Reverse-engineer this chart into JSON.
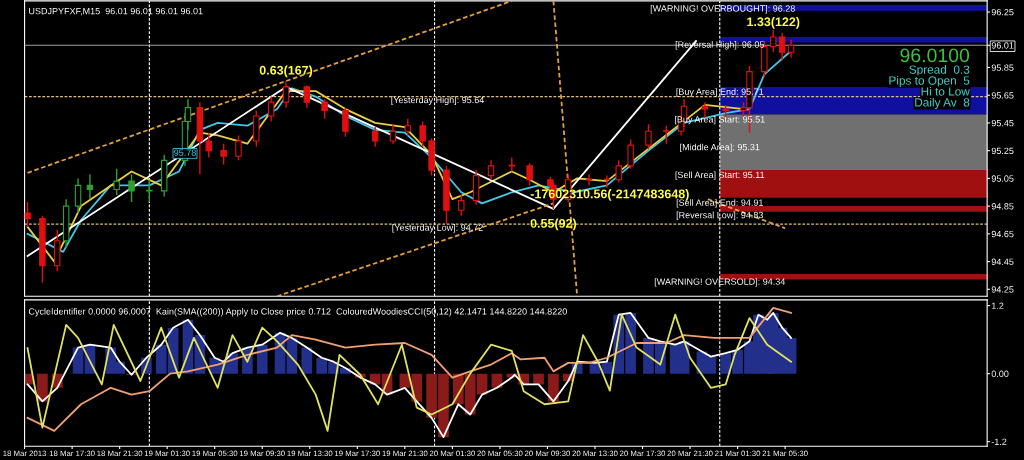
{
  "chart_data": [
    {
      "type": "candlestick",
      "title": "USDJPYFXF,M15  96.01 96.01 96.01 96.01",
      "xlim": [
        "2013-03-18T13:30",
        "2013-03-21T22:30"
      ],
      "ylim": [
        94.2,
        96.33
      ],
      "tick_labels": "y",
      "yticks": [
        96.25,
        {
          "value": 96.01,
          "label": "96.01"
        },
        95.85,
        95.65,
        95.45,
        95.25,
        95.05,
        94.85,
        94.65,
        94.45,
        94.25
      ],
      "series": [
        {
          "color": "#e01010",
          "x": [
            "2013-03-18T13:45",
            "2013-03-18T15:00",
            "2013-03-18T16:15",
            "2013-03-19T04:15",
            "2013-03-19T05:00",
            "2013-03-19T06:15",
            "2013-03-19T07:30",
            "2013-03-19T09:00",
            "2013-03-19T10:15",
            "2013-03-19T11:30",
            "2013-03-19T13:15",
            "2013-03-19T14:45",
            "2013-03-19T16:30",
            "2013-03-19T19:00",
            "2013-03-19T20:30",
            "2013-03-19T21:45",
            "2013-03-19T23:00",
            "2013-03-19T23:45",
            "2013-03-20T01:00",
            "2013-03-20T02:15",
            "2013-03-20T03:30",
            "2013-03-20T04:45",
            "2013-03-20T06:30",
            "2013-03-20T08:00",
            "2013-03-20T09:45",
            "2013-03-20T10:00",
            "2013-03-20T11:15",
            "2013-03-20T13:00",
            "2013-03-20T14:30",
            "2013-03-20T15:30",
            "2013-03-20T16:30",
            "2013-03-20T18:00",
            "2013-03-20T19:30",
            "2013-03-20T20:45",
            "2013-03-20T21:00",
            "2013-03-20T22:45",
            "2013-03-21T00:30",
            "2013-03-21T02:00",
            "2013-03-21T02:30",
            "2013-03-21T03:45",
            "2013-03-21T04:30",
            "2013-03-21T05:15",
            "2013-03-21T06:00"
          ],
          "ohlc": [
            [
              94.8,
              94.88,
              94.7,
              94.76
            ],
            [
              94.76,
              94.78,
              94.3,
              94.42
            ],
            [
              94.42,
              94.68,
              94.38,
              94.6
            ],
            [
              95.56,
              95.6,
              95.08,
              95.32
            ],
            [
              95.32,
              95.38,
              95.2,
              95.25
            ],
            [
              95.25,
              95.3,
              95.15,
              95.21
            ],
            [
              95.21,
              95.36,
              95.18,
              95.32
            ],
            [
              95.32,
              95.54,
              95.28,
              95.5
            ],
            [
              95.5,
              95.64,
              95.46,
              95.6
            ],
            [
              95.6,
              95.75,
              95.56,
              95.71
            ],
            [
              95.71,
              95.72,
              95.56,
              95.6
            ],
            [
              95.6,
              95.62,
              95.48,
              95.54
            ],
            [
              95.54,
              95.56,
              95.35,
              95.39
            ],
            [
              95.39,
              95.42,
              95.28,
              95.32
            ],
            [
              95.32,
              95.44,
              95.3,
              95.39
            ],
            [
              95.39,
              95.48,
              95.36,
              95.43
            ],
            [
              95.43,
              95.46,
              95.28,
              95.32
            ],
            [
              95.32,
              95.34,
              95.07,
              95.11
            ],
            [
              95.11,
              95.14,
              94.72,
              94.82
            ],
            [
              94.82,
              94.93,
              94.78,
              94.89
            ],
            [
              94.89,
              95.11,
              94.86,
              95.07
            ],
            [
              95.07,
              95.18,
              95.04,
              95.14
            ],
            [
              95.14,
              95.2,
              95.1,
              95.14
            ],
            [
              95.14,
              95.16,
              95.0,
              95.04
            ],
            [
              95.04,
              95.06,
              94.95,
              95.0
            ],
            [
              95.0,
              95.02,
              94.83,
              94.9
            ],
            [
              94.9,
              95.08,
              94.88,
              95.04
            ],
            [
              95.04,
              95.08,
              95.0,
              95.04
            ],
            [
              95.04,
              95.07,
              94.98,
              95.04
            ],
            [
              95.04,
              95.18,
              95.02,
              95.14
            ],
            [
              95.14,
              95.33,
              95.12,
              95.29
            ],
            [
              95.29,
              95.44,
              95.26,
              95.39
            ],
            [
              95.39,
              95.43,
              95.3,
              95.39
            ],
            [
              95.39,
              95.5,
              95.36,
              95.46
            ],
            [
              95.46,
              95.62,
              95.42,
              95.57
            ],
            [
              95.57,
              95.6,
              95.48,
              95.55
            ],
            [
              95.55,
              95.58,
              95.48,
              95.54
            ],
            [
              95.54,
              95.6,
              95.5,
              95.56
            ],
            [
              95.56,
              95.86,
              95.38,
              95.82
            ],
            [
              95.82,
              96.04,
              95.78,
              96.0
            ],
            [
              96.0,
              96.12,
              95.96,
              96.07
            ],
            [
              96.07,
              96.1,
              95.9,
              95.96
            ],
            [
              95.96,
              96.05,
              95.92,
              96.01
            ]
          ]
        },
        {
          "color": "#30a030",
          "x": [
            "2013-03-18T17:00",
            "2013-03-18T18:00",
            "2013-03-18T19:00",
            "2013-03-18T21:15",
            "2013-03-18T22:30",
            "2013-03-19T00:00",
            "2013-03-19T01:15",
            "2013-03-19T03:00",
            "2013-03-19T03:15"
          ],
          "ohlc": [
            [
              94.6,
              94.9,
              94.55,
              94.85
            ],
            [
              94.85,
              95.05,
              94.8,
              95.0
            ],
            [
              95.0,
              95.08,
              94.9,
              94.97
            ],
            [
              94.97,
              95.12,
              94.93,
              95.03
            ],
            [
              95.03,
              95.08,
              94.88,
              94.96
            ],
            [
              94.96,
              95.04,
              94.88,
              94.96
            ],
            [
              94.96,
              95.22,
              94.92,
              95.18
            ],
            [
              95.18,
              95.52,
              95.14,
              95.46
            ],
            [
              95.46,
              95.62,
              95.4,
              95.56
            ]
          ]
        },
        {
          "type": "line",
          "color": "#40c8e8",
          "x": [
            "2013-03-18T13:45",
            "2013-03-18T16:45",
            "2013-03-18T18:15",
            "2013-03-18T20:45",
            "2013-03-19T00:00",
            "2013-03-19T02:30",
            "2013-03-19T04:15",
            "2013-03-19T05:45",
            "2013-03-19T08:15",
            "2013-03-19T10:45",
            "2013-03-19T12:00",
            "2013-03-19T14:00",
            "2013-03-19T16:30",
            "2013-03-19T19:00",
            "2013-03-19T21:30",
            "2013-03-19T23:45",
            "2013-03-20T02:15",
            "2013-03-20T04:00",
            "2013-03-20T06:30",
            "2013-03-20T08:45",
            "2013-03-20T11:45",
            "2013-03-20T14:30",
            "2013-03-20T18:00",
            "2013-03-20T21:00",
            "2013-03-21T00:30",
            "2013-03-21T02:30",
            "2013-03-21T03:45",
            "2013-03-21T06:00"
          ],
          "values": [
            94.65,
            94.52,
            94.75,
            95.0,
            95.0,
            95.1,
            95.4,
            95.45,
            95.43,
            95.55,
            95.7,
            95.64,
            95.5,
            95.4,
            95.38,
            95.2,
            94.95,
            94.87,
            94.95,
            95.0,
            94.95,
            95.0,
            95.25,
            95.45,
            95.52,
            95.55,
            95.8,
            95.97
          ]
        },
        {
          "type": "line",
          "color": "#e8d040",
          "x": [
            "2013-03-18T13:45",
            "2013-03-18T16:00",
            "2013-03-18T18:15",
            "2013-03-18T22:30",
            "2013-03-19T01:00",
            "2013-03-19T04:15",
            "2013-03-19T05:45",
            "2013-03-19T08:15",
            "2013-03-19T11:30",
            "2013-03-19T14:00",
            "2013-03-19T16:30",
            "2013-03-19T19:00",
            "2013-03-19T21:30",
            "2013-03-19T23:45",
            "2013-03-20T01:30",
            "2013-03-20T03:00",
            "2013-03-20T06:30",
            "2013-03-20T08:00",
            "2013-03-20T10:00",
            "2013-03-20T12:00",
            "2013-03-20T14:30",
            "2013-03-20T22:45",
            "2013-03-21T02:00"
          ],
          "values": [
            94.7,
            94.45,
            94.85,
            95.1,
            95.0,
            95.38,
            95.36,
            95.3,
            95.68,
            95.68,
            95.55,
            95.45,
            95.42,
            95.22,
            94.9,
            94.95,
            95.1,
            95.04,
            94.95,
            95.05,
            95.03,
            95.58,
            95.55
          ]
        },
        {
          "type": "line",
          "color": "#ffffff",
          "x": [
            "2013-03-18T13:45",
            "2013-03-19T11:30",
            "2013-03-20T10:00",
            "2013-03-20T22:00"
          ],
          "values": [
            94.49,
            95.71,
            94.83,
            96.04
          ]
        },
        {
          "type": "line",
          "color": "#e0a040",
          "line_style": "dashed",
          "x": [
            "2013-03-18T13:45",
            "2013-03-20T06:30"
          ],
          "values": [
            95.09,
            96.33
          ]
        },
        {
          "type": "line",
          "color": "#e0a040",
          "line_style": "dashed",
          "x": [
            "2013-03-19T10:45",
            "2013-03-20T10:00"
          ],
          "values": [
            94.2,
            94.87
          ]
        },
        {
          "type": "line",
          "color": "#e0a040",
          "line_style": "dashed",
          "x": [
            "2013-03-20T23:00",
            "2013-03-21T05:30"
          ],
          "values": [
            94.9,
            94.69
          ]
        },
        {
          "type": "line",
          "color": "#e0a040",
          "line_style": "dashed",
          "x": [
            "2013-03-20T10:00",
            "2013-03-20T12:00"
          ],
          "values": [
            96.33,
            94.2
          ]
        }
      ],
      "ref_lines": [
        {
          "axis": "x",
          "value": "2013-03-19T00:00",
          "color": "#ffffff",
          "line_style": "dashed"
        },
        {
          "axis": "x",
          "value": "2013-03-20T00:00",
          "color": "#ffffff",
          "line_style": "dashed"
        },
        {
          "axis": "x",
          "value": "2013-03-21T00:00",
          "color": "#ffffff",
          "line_style": "dashed"
        },
        {
          "axis": "y",
          "value": 95.64,
          "color": "#e0c080",
          "line_style": "dashed"
        },
        {
          "axis": "y",
          "value": 94.72,
          "color": "#e0c080",
          "line_style": "dashed"
        },
        {
          "axis": "y",
          "value": 96.01,
          "color": "#a0a0a0",
          "line_style": "solid"
        }
      ],
      "bands": [
        {
          "axis": "y",
          "from": 96.26,
          "to": 96.3,
          "color": "#1010a0"
        },
        {
          "axis": "y",
          "from": 96.03,
          "to": 96.07,
          "color": "#1010a0"
        },
        {
          "axis": "y",
          "from": 95.51,
          "to": 95.71,
          "color": "#1010a0"
        },
        {
          "axis": "y",
          "from": 95.11,
          "to": 95.51,
          "color": "#707070"
        },
        {
          "axis": "y",
          "from": 94.91,
          "to": 95.11,
          "color": "#a01010"
        },
        {
          "axis": "y",
          "from": 94.81,
          "to": 94.85,
          "color": "#a01010"
        },
        {
          "axis": "y",
          "from": 94.32,
          "to": 94.36,
          "color": "#a01010"
        }
      ],
      "annotations": [
        {
          "text": "0.63(167)",
          "x": "2013-03-19T11:30",
          "y": 95.71
        },
        {
          "text": "1.33(122)",
          "x": "2013-03-21T04:30",
          "y": 96.12
        },
        {
          "text": "0.55(92)",
          "x": "2013-03-20T10:00",
          "y": 94.83
        },
        {
          "text": "95.78",
          "x": "2013-03-19T03:00",
          "y": 95.23
        },
        {
          "text": "[Yesterday High]: 95.64",
          "x": "2013-03-20T00:15",
          "y": 95.61
        },
        {
          "text": "[Yesterday Low]: 94.72",
          "x": "2013-03-20T00:15",
          "y": 94.69
        },
        {
          "text": "[WARNING! OVERBOUGHT]: 96.28",
          "x": "2013-03-21T00:15",
          "y": 96.27
        },
        {
          "text": "[Reversal High]: 96.05",
          "x": "2013-03-21T00:00",
          "y": 96.01
        },
        {
          "text": "[Buy Area] End: 95.71",
          "x": "2013-03-21T00:00",
          "y": 95.67
        },
        {
          "text": "[Buy Area] Start: 95.51",
          "x": "2013-03-21T00:00",
          "y": 95.47
        },
        {
          "text": "[Middle Area]: 95.31",
          "x": "2013-03-21T00:00",
          "y": 95.27
        },
        {
          "text": "[Sell Area] Start: 95.11",
          "x": "2013-03-21T00:00",
          "y": 95.07
        },
        {
          "text": "[Sell Area] End: 94.91",
          "x": "2013-03-21T00:00",
          "y": 94.87
        },
        {
          "text": "[Reversal Low]: 94.83",
          "x": "2013-03-21T00:00",
          "y": 94.78
        },
        {
          "text": "[WARNING! OVERSOLD]: 94.34",
          "x": "2013-03-21T00:00",
          "y": 94.3
        },
        "-17602310.56(-2147483648)",
        "96.0100",
        "Spread  0.3",
        "Pips to Open  5",
        "Hi to Low",
        "Daily Av  8"
      ]
    },
    {
      "type": "bar",
      "title": "CycleIdentifier 0.0000 96.0007  Kain(SMA((200)) Apply to Close price 0.712  ColouredWoodiesCCI(50,12) 42.1471 144.8220 144.8220",
      "xlim": [
        "2013-03-18T13:30",
        "2013-03-21T22:30"
      ],
      "ylim": [
        -1.28,
        1.3
      ],
      "yticks": [
        1.2,
        {
          "value": 0,
          "label": "0.00"
        },
        -1.2
      ],
      "xticks": [
        {
          "value": "2013-03-18T13:30",
          "label": "18 Mar 2013"
        },
        {
          "value": "2013-03-18T17:30",
          "label": "18 Mar 17:30"
        },
        {
          "value": "2013-03-18T21:30",
          "label": "18 Mar 21:30"
        },
        {
          "value": "2013-03-19T01:30",
          "label": "19 Mar 01:30"
        },
        {
          "value": "2013-03-19T05:30",
          "label": "19 Mar 05:30"
        },
        {
          "value": "2013-03-19T09:30",
          "label": "19 Mar 09:30"
        },
        {
          "value": "2013-03-19T13:30",
          "label": "19 Mar 13:30"
        },
        {
          "value": "2013-03-19T17:30",
          "label": "19 Mar 17:30"
        },
        {
          "value": "2013-03-19T21:30",
          "label": "19 Mar 21:30"
        },
        {
          "value": "2013-03-20T01:30",
          "label": "20 Mar 01:30"
        },
        {
          "value": "2013-03-20T05:30",
          "label": "20 Mar 05:30"
        },
        {
          "value": "2013-03-20T09:30",
          "label": "20 Mar 09:30"
        },
        {
          "value": "2013-03-20T13:30",
          "label": "20 Mar 13:30"
        },
        {
          "value": "2013-03-20T17:30",
          "label": "20 Mar 17:30"
        },
        {
          "value": "2013-03-20T21:30",
          "label": "20 Mar 21:30"
        },
        {
          "value": "2013-03-21T01:30",
          "label": "21 Mar 01:30"
        },
        {
          "value": "2013-03-21T05:30",
          "label": "21 Mar 05:30"
        }
      ],
      "ref_lines": [
        {
          "axis": "x",
          "value": "2013-03-19T00:00",
          "color": "#ffffff",
          "line_style": "dashed"
        },
        {
          "axis": "x",
          "value": "2013-03-20T00:00",
          "color": "#ffffff",
          "line_style": "dashed"
        },
        {
          "axis": "x",
          "value": "2013-03-21T00:00",
          "color": "#ffffff",
          "line_style": "dashed"
        }
      ],
      "series": [
        {
          "x": [
            "2013-03-18T13:45",
            "2013-03-18T15:00",
            "2013-03-18T16:15",
            "2013-03-18T18:00",
            "2013-03-18T19:00",
            "2013-03-18T20:45",
            "2013-03-18T21:30",
            "2013-03-18T22:30",
            "2013-03-18T23:45",
            "2013-03-19T01:00",
            "2013-03-19T02:00",
            "2013-03-19T03:15",
            "2013-03-19T04:15",
            "2013-03-19T05:30",
            "2013-03-19T06:15",
            "2013-03-19T07:00",
            "2013-03-19T08:15",
            "2013-03-19T09:30",
            "2013-03-19T11:00",
            "2013-03-19T12:00",
            "2013-03-19T13:15",
            "2013-03-19T14:30",
            "2013-03-19T15:30",
            "2013-03-19T16:30",
            "2013-03-19T17:45",
            "2013-03-19T19:00",
            "2013-03-19T20:00",
            "2013-03-19T21:30",
            "2013-03-19T22:30",
            "2013-03-19T23:45",
            "2013-03-20T00:45",
            "2013-03-20T02:00",
            "2013-03-20T03:00",
            "2013-03-20T04:00",
            "2013-03-20T05:15",
            "2013-03-20T06:30",
            "2013-03-20T06:45",
            "2013-03-20T07:30",
            "2013-03-20T08:45",
            "2013-03-20T10:00",
            "2013-03-20T11:15",
            "2013-03-20T12:00",
            "2013-03-20T13:30",
            "2013-03-20T14:30",
            "2013-03-20T15:30",
            "2013-03-20T16:30",
            "2013-03-20T18:00",
            "2013-03-20T19:00",
            "2013-03-20T20:15",
            "2013-03-20T21:00",
            "2013-03-20T22:30",
            "2013-03-20T23:15",
            "2013-03-21T00:30",
            "2013-03-21T01:30",
            "2013-03-21T02:30",
            "2013-03-21T03:15",
            "2013-03-21T04:00",
            "2013-03-21T04:30",
            "2013-03-21T05:15",
            "2013-03-21T06:00"
          ],
          "values": [
            -0.19,
            -0.49,
            -0.25,
            0.46,
            0.51,
            0.46,
            0.21,
            -0.02,
            0.28,
            0.51,
            0.81,
            0.95,
            0.68,
            0.28,
            0.21,
            0.36,
            0.46,
            0.51,
            0.72,
            0.63,
            0.46,
            0.28,
            0.21,
            0.1,
            -0.07,
            -0.19,
            -0.37,
            -0.25,
            -0.49,
            -0.78,
            -1.12,
            -0.54,
            -0.72,
            -0.37,
            -0.25,
            -0.07,
            -0.02,
            -0.19,
            -0.19,
            -0.49,
            -0.13,
            0.21,
            0.19,
            0.21,
            1.04,
            1.07,
            0.63,
            0.57,
            0.51,
            0.57,
            0.39,
            0.3,
            0.36,
            0.42,
            0.57,
            1.04,
            0.95,
            1.07,
            0.81,
            0.63
          ],
          "colors": [
            "#8b1a1a",
            "#8b1a1a",
            "#8b1a1a",
            "#22308c",
            "#22308c",
            "#22308c",
            "#22308c",
            "#8b1a1a",
            "#22308c",
            "#22308c",
            "#22308c",
            "#22308c",
            "#22308c",
            "#22308c",
            "#22308c",
            "#22308c",
            "#22308c",
            "#22308c",
            "#22308c",
            "#22308c",
            "#22308c",
            "#22308c",
            "#22308c",
            "#22308c",
            "#8b1a1a",
            "#8b1a1a",
            "#8b1a1a",
            "#8b1a1a",
            "#8b1a1a",
            "#8b1a1a",
            "#8b1a1a",
            "#8b1a1a",
            "#8b1a1a",
            "#8b1a1a",
            "#8b1a1a",
            "#8b1a1a",
            "#8b1a1a",
            "#8b1a1a",
            "#8b1a1a",
            "#8b1a1a",
            "#8b1a1a",
            "#22308c",
            "#22308c",
            "#22308c",
            "#22308c",
            "#22308c",
            "#22308c",
            "#22308c",
            "#22308c",
            "#22308c",
            "#22308c",
            "#22308c",
            "#22308c",
            "#22308c",
            "#22308c",
            "#22308c",
            "#22308c",
            "#22308c",
            "#22308c",
            "#22308c"
          ]
        },
        {
          "type": "line",
          "color": "#ffffff",
          "x": [
            "2013-03-18T13:45",
            "2013-03-18T15:00",
            "2013-03-18T16:15",
            "2013-03-18T18:00",
            "2013-03-18T19:00",
            "2013-03-18T20:45",
            "2013-03-18T21:30",
            "2013-03-18T22:30",
            "2013-03-18T23:45",
            "2013-03-19T01:00",
            "2013-03-19T02:00",
            "2013-03-19T03:15",
            "2013-03-19T04:15",
            "2013-03-19T05:30",
            "2013-03-19T06:15",
            "2013-03-19T07:00",
            "2013-03-19T08:15",
            "2013-03-19T09:30",
            "2013-03-19T11:00",
            "2013-03-19T12:00",
            "2013-03-19T13:15",
            "2013-03-19T14:30",
            "2013-03-19T15:30",
            "2013-03-19T16:30",
            "2013-03-19T17:45",
            "2013-03-19T19:00",
            "2013-03-19T20:00",
            "2013-03-19T21:30",
            "2013-03-19T22:30",
            "2013-03-19T23:45",
            "2013-03-20T00:45",
            "2013-03-20T02:00",
            "2013-03-20T03:00",
            "2013-03-20T04:00",
            "2013-03-20T05:15",
            "2013-03-20T06:30",
            "2013-03-20T06:45",
            "2013-03-20T07:30",
            "2013-03-20T08:45",
            "2013-03-20T10:00",
            "2013-03-20T11:15",
            "2013-03-20T12:00",
            "2013-03-20T13:30",
            "2013-03-20T14:30",
            "2013-03-20T15:30",
            "2013-03-20T16:30",
            "2013-03-20T18:00",
            "2013-03-20T19:00",
            "2013-03-20T20:15",
            "2013-03-20T21:00",
            "2013-03-20T22:30",
            "2013-03-20T23:15",
            "2013-03-21T00:30",
            "2013-03-21T01:30",
            "2013-03-21T02:30",
            "2013-03-21T03:15",
            "2013-03-21T04:00",
            "2013-03-21T04:30",
            "2013-03-21T05:15",
            "2013-03-21T06:00"
          ],
          "values": [
            -0.19,
            -0.49,
            -0.25,
            0.46,
            0.51,
            0.46,
            0.21,
            -0.02,
            0.28,
            0.51,
            0.81,
            0.95,
            0.68,
            0.28,
            0.21,
            0.36,
            0.46,
            0.51,
            0.72,
            0.63,
            0.46,
            0.28,
            0.21,
            0.1,
            -0.07,
            -0.19,
            -0.37,
            -0.25,
            -0.49,
            -0.78,
            -1.12,
            -0.54,
            -0.72,
            -0.37,
            -0.25,
            -0.07,
            -0.02,
            -0.19,
            -0.19,
            -0.49,
            -0.13,
            0.21,
            0.19,
            0.21,
            1.04,
            1.07,
            0.63,
            0.57,
            0.51,
            0.57,
            0.39,
            0.3,
            0.36,
            0.42,
            0.57,
            1.04,
            0.95,
            1.07,
            0.81,
            0.63
          ]
        },
        {
          "type": "line",
          "color": "#f0a070",
          "x": [
            "2013-03-18T13:45",
            "2013-03-18T16:00",
            "2013-03-18T18:15",
            "2013-03-18T20:45",
            "2013-03-18T22:30",
            "2013-03-19T00:00",
            "2013-03-19T01:45",
            "2013-03-19T03:15",
            "2013-03-19T05:45",
            "2013-03-19T08:15",
            "2013-03-19T10:45",
            "2013-03-19T12:00",
            "2013-03-19T14:00",
            "2013-03-19T16:30",
            "2013-03-19T19:00",
            "2013-03-19T21:30",
            "2013-03-19T23:45",
            "2013-03-20T01:30",
            "2013-03-20T03:00",
            "2013-03-20T04:45",
            "2013-03-20T06:30",
            "2013-03-20T07:15",
            "2013-03-20T09:15",
            "2013-03-20T10:00",
            "2013-03-20T11:15",
            "2013-03-20T13:00",
            "2013-03-20T14:30",
            "2013-03-20T17:00",
            "2013-03-20T19:30",
            "2013-03-20T21:00",
            "2013-03-20T23:30",
            "2013-03-21T02:30",
            "2013-03-21T04:30",
            "2013-03-21T06:00"
          ],
          "values": [
            -0.78,
            -1.01,
            -0.54,
            -0.25,
            -0.37,
            -0.31,
            0,
            0.04,
            0.16,
            0.33,
            0.46,
            0.68,
            0.6,
            0.46,
            0.51,
            0.54,
            0.33,
            -0.07,
            0.04,
            0.16,
            0.36,
            0.25,
            0.28,
            0.04,
            0.19,
            0.19,
            0.28,
            0.54,
            0.54,
            0.68,
            0.63,
            0.63,
            1.16,
            1.07
          ]
        },
        {
          "type": "line",
          "color": "#e0e060",
          "x": [
            "2013-03-18T13:45",
            "2013-03-18T15:00",
            "2013-03-18T17:00",
            "2013-03-18T18:00",
            "2013-03-18T20:00",
            "2013-03-18T21:00",
            "2013-03-18T23:15",
            "2013-03-19T01:00",
            "2013-03-19T02:30",
            "2013-03-19T03:45",
            "2013-03-19T05:45",
            "2013-03-19T07:00",
            "2013-03-19T08:15",
            "2013-03-19T09:30",
            "2013-03-19T10:45",
            "2013-03-19T12:30",
            "2013-03-19T14:00",
            "2013-03-19T15:00",
            "2013-03-19T16:00",
            "2013-03-19T17:45",
            "2013-03-19T19:15",
            "2013-03-19T21:15",
            "2013-03-19T22:30",
            "2013-03-19T23:45",
            "2013-03-20T01:30",
            "2013-03-20T03:00",
            "2013-03-20T04:45",
            "2013-03-20T06:30",
            "2013-03-20T07:30",
            "2013-03-20T09:15",
            "2013-03-20T11:15",
            "2013-03-20T12:30",
            "2013-03-20T13:45",
            "2013-03-20T14:45",
            "2013-03-20T15:45",
            "2013-03-20T17:00",
            "2013-03-20T19:00",
            "2013-03-20T20:15",
            "2013-03-20T21:30",
            "2013-03-20T23:15",
            "2013-03-21T00:30",
            "2013-03-21T01:15",
            "2013-03-21T02:30",
            "2013-03-21T04:00",
            "2013-03-21T06:00"
          ],
          "values": [
            0.45,
            -0.95,
            0.86,
            0.63,
            -0.19,
            0.86,
            -0.13,
            0.81,
            -0.07,
            0.63,
            -0.25,
            0.68,
            0.21,
            0.81,
            0.57,
            0.16,
            -0.37,
            -1.01,
            0.33,
            -0.02,
            -0.54,
            0.51,
            -0.6,
            -0.72,
            -0.54,
            0,
            0.51,
            0.4,
            -0.31,
            -0.54,
            -0.49,
            0.68,
            0.21,
            -0.3,
            1.04,
            0.46,
            0.16,
            1.04,
            0.28,
            -0.25,
            -0.19,
            0.33,
            0.98,
            0.51,
            0.21
          ]
        }
      ]
    }
  ]
}
